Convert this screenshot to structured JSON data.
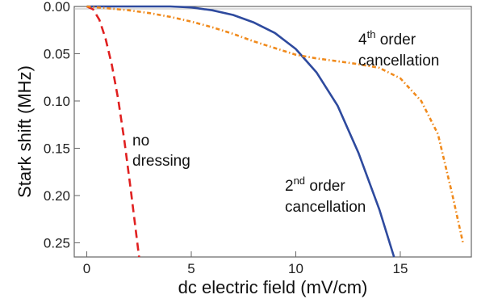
{
  "chart_data": {
    "type": "line",
    "title": "",
    "xlabel": "dc electric field (mV/cm)",
    "ylabel": "Stark shift (MHz)",
    "xlim": [
      -0.6,
      18.4
    ],
    "ylim": [
      0.0,
      0.265
    ],
    "y_inverted": true,
    "grid": false,
    "x_ticks": [
      0,
      5,
      10,
      15
    ],
    "x_tick_labels": [
      "0",
      "5",
      "10",
      "15"
    ],
    "y_ticks": [
      0.0,
      0.05,
      0.1,
      0.15,
      0.2,
      0.25
    ],
    "y_tick_labels": [
      "0.00",
      "0.05",
      "0.10",
      "0.15",
      "0.20",
      "0.25"
    ],
    "series": [
      {
        "color": "#e02020",
        "style": "dashed",
        "x": [
          0,
          0.3,
          0.6,
          0.9,
          1.2,
          1.5,
          1.8,
          2.1,
          2.3,
          2.5
        ],
        "y": [
          0.0,
          0.003,
          0.014,
          0.034,
          0.062,
          0.098,
          0.142,
          0.193,
          0.229,
          0.265
        ]
      },
      {
        "color": "#2e4a9e",
        "style": "solid",
        "x": [
          0,
          2,
          4,
          5,
          6,
          7,
          8,
          9,
          10,
          11,
          12,
          13,
          14,
          14.7
        ],
        "y": [
          0.0,
          0.0,
          0.0,
          0.001,
          0.004,
          0.009,
          0.017,
          0.028,
          0.045,
          0.07,
          0.105,
          0.155,
          0.215,
          0.265
        ]
      },
      {
        "color": "#f08a1c",
        "style": "dash-dot",
        "x": [
          0,
          1,
          2,
          3,
          4,
          5,
          6,
          7,
          8,
          9,
          10,
          11,
          12,
          13,
          14,
          15,
          16,
          16.8,
          17.5,
          18
        ],
        "y": [
          0.0,
          0.002,
          0.004,
          0.007,
          0.011,
          0.016,
          0.022,
          0.029,
          0.037,
          0.044,
          0.051,
          0.055,
          0.058,
          0.061,
          0.065,
          0.076,
          0.1,
          0.135,
          0.2,
          0.25
        ]
      }
    ],
    "annotations": [
      {
        "lines": [
          "no",
          "dressing"
        ]
      },
      {
        "base": "2",
        "sup": "nd",
        "rest": " order",
        "line2": "cancellation"
      },
      {
        "base": "4",
        "sup": "th",
        "rest": " order",
        "line2": "cancellation"
      }
    ],
    "colors": {
      "frame": "#666666",
      "zero_line": "#bbbbbb"
    }
  }
}
